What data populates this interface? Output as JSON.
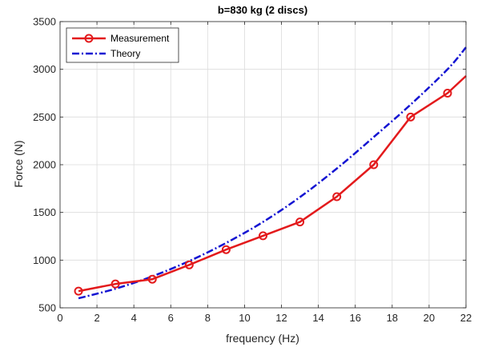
{
  "chart_data": {
    "type": "line",
    "title": "b=830 kg (2 discs)",
    "xlabel": "frequency (Hz)",
    "ylabel": "Force (N)",
    "xlim": [
      0,
      22
    ],
    "ylim": [
      500,
      3500
    ],
    "xticks": [
      0,
      2,
      4,
      6,
      8,
      10,
      12,
      14,
      16,
      18,
      20,
      22
    ],
    "yticks": [
      500,
      1000,
      1500,
      2000,
      2500,
      3000,
      3500
    ],
    "grid": true,
    "legend_position": "top-left",
    "series": [
      {
        "name": "Measurement",
        "style": "solid-circle-markers",
        "color": "#e31a1c",
        "x": [
          1,
          3,
          5,
          7,
          9,
          11,
          13,
          15,
          17,
          19,
          21,
          22
        ],
        "y": [
          675,
          750,
          800,
          950,
          1110,
          1255,
          1400,
          1665,
          2000,
          2500,
          2750,
          2930
        ],
        "marker_count": 11
      },
      {
        "name": "Theory",
        "style": "dashdot",
        "color": "#1414d2",
        "x": [
          1,
          3,
          5,
          7,
          9,
          11,
          13,
          15,
          17,
          19,
          21,
          22
        ],
        "y": [
          600,
          700,
          830,
          990,
          1180,
          1400,
          1660,
          1960,
          2290,
          2630,
          3000,
          3230
        ]
      }
    ]
  }
}
